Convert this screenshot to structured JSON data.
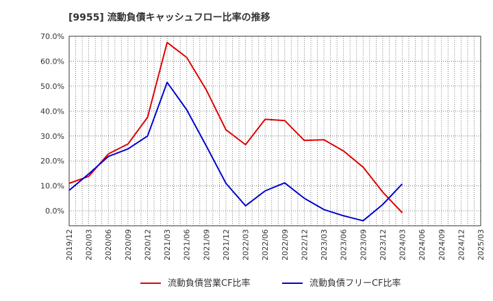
{
  "chart_data": {
    "type": "line",
    "title": "[9955]  流動負債キャッシュフロー比率の推移",
    "xlabel": "",
    "ylabel": "",
    "ylim": [
      -6,
      70
    ],
    "yticks": [
      70,
      60,
      50,
      40,
      30,
      20,
      10,
      0
    ],
    "ytick_labels": [
      "70.0%",
      "60.0%",
      "50.0%",
      "40.0%",
      "30.0%",
      "20.0%",
      "10.0%",
      "0.0%"
    ],
    "xlim": [
      "2019/12",
      "2025/03"
    ],
    "xtick_labels": [
      "2019/12",
      "2020/03",
      "2020/06",
      "2020/09",
      "2020/12",
      "2021/03",
      "2021/06",
      "2021/09",
      "2021/12",
      "2022/03",
      "2022/06",
      "2022/09",
      "2022/12",
      "2023/03",
      "2023/06",
      "2023/09",
      "2023/12",
      "2024/03",
      "2024/06",
      "2024/09",
      "2024/12",
      "2025/03"
    ],
    "grid": true,
    "legend_position": "bottom",
    "x": [
      "2019/12",
      "2020/03",
      "2020/06",
      "2020/09",
      "2020/12",
      "2021/03",
      "2021/06",
      "2021/09",
      "2021/12",
      "2022/03",
      "2022/06",
      "2022/09",
      "2022/12",
      "2023/03",
      "2023/06",
      "2023/09",
      "2023/12",
      "2024/03"
    ],
    "series": [
      {
        "name": "流動負債営業CF比率",
        "color": "#e00000",
        "values": [
          11.0,
          13.8,
          22.8,
          26.8,
          37.5,
          67.5,
          61.5,
          48.5,
          32.5,
          26.5,
          36.7,
          36.2,
          28.2,
          28.5,
          24.0,
          17.5,
          7.5,
          -0.8
        ]
      },
      {
        "name": "流動負債フリーCF比率",
        "color": "#0000d0",
        "values": [
          8.2,
          14.8,
          21.8,
          24.8,
          30.0,
          51.5,
          40.5,
          26.0,
          11.0,
          2.0,
          8.0,
          11.2,
          5.0,
          0.5,
          -2.0,
          -4.0,
          2.5,
          10.8
        ]
      }
    ]
  }
}
